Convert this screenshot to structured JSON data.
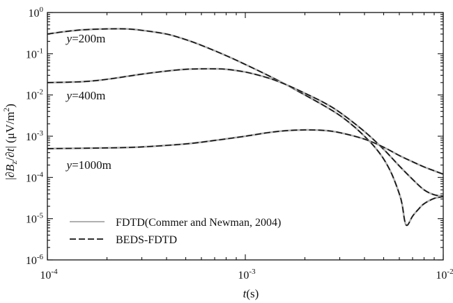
{
  "chart_data": {
    "type": "line",
    "x_scale": "log",
    "y_scale": "log",
    "xlim": [
      0.0001,
      0.01
    ],
    "ylim": [
      1e-06,
      1
    ],
    "xlabel": {
      "italic": "t",
      "rest": "(s)"
    },
    "ylabel": "|∂B_z/∂t| (μV/m²)",
    "ylabel_parts": {
      "a": "|∂",
      "b": "B",
      "sub": "z",
      "c": "/∂",
      "d": "t",
      "e": "| (μV/m",
      "sup": "2",
      "f": ")"
    },
    "x_ticks": [
      {
        "value": 0.0001,
        "base": "10",
        "exp": "-4"
      },
      {
        "value": 0.001,
        "base": "10",
        "exp": "-3"
      },
      {
        "value": 0.01,
        "base": "10",
        "exp": "-2"
      }
    ],
    "y_ticks": [
      {
        "value": 1,
        "base": "10",
        "exp": "0"
      },
      {
        "value": 0.1,
        "base": "10",
        "exp": "-1"
      },
      {
        "value": 0.01,
        "base": "10",
        "exp": "-2"
      },
      {
        "value": 0.001,
        "base": "10",
        "exp": "-3"
      },
      {
        "value": 0.0001,
        "base": "10",
        "exp": "-4"
      },
      {
        "value": 1e-05,
        "base": "10",
        "exp": "-5"
      },
      {
        "value": 1e-06,
        "base": "10",
        "exp": "-6"
      }
    ],
    "grid": false,
    "legend_position": "bottom-left",
    "legend": [
      {
        "label": "FDTD(Commer and Newman, 2004)",
        "color": "#b0b0b0",
        "style": "solid"
      },
      {
        "label": "BEDS-FDTD",
        "color": "#111111",
        "style": "dashed"
      }
    ],
    "annotations": [
      {
        "var": "y",
        "rest": "=200m",
        "x": 0.000125,
        "y": 0.19
      },
      {
        "var": "y",
        "rest": "=400m",
        "x": 0.000125,
        "y": 0.0078
      },
      {
        "var": "y",
        "rest": "=1000m",
        "x": 0.000125,
        "y": 0.00016
      }
    ],
    "series": [
      {
        "curve": "y=200m",
        "x": [
          0.0001,
          0.00012,
          0.00015,
          0.0002,
          0.00025,
          0.0003,
          0.0004,
          0.0005,
          0.0006,
          0.0008,
          0.001,
          0.0013,
          0.0016,
          0.002,
          0.0025,
          0.003,
          0.0035,
          0.004,
          0.0045,
          0.005,
          0.0055,
          0.006,
          0.0062,
          0.0064,
          0.0066,
          0.007,
          0.0075,
          0.008,
          0.009,
          0.01
        ],
        "values": [
          0.3,
          0.34,
          0.38,
          0.4,
          0.4,
          0.37,
          0.3,
          0.22,
          0.16,
          0.09,
          0.055,
          0.03,
          0.018,
          0.01,
          0.0055,
          0.0032,
          0.0018,
          0.001,
          0.00055,
          0.00028,
          0.00012,
          4e-05,
          2.2e-05,
          8.5e-06,
          7e-06,
          1.15e-05,
          1.7e-05,
          2.3e-05,
          3.1e-05,
          3.4e-05
        ]
      },
      {
        "curve": "y=400m",
        "x": [
          0.0001,
          0.00015,
          0.0002,
          0.0003,
          0.0004,
          0.0005,
          0.0006,
          0.0007,
          0.0008,
          0.001,
          0.0013,
          0.0016,
          0.002,
          0.0025,
          0.003,
          0.004,
          0.005,
          0.006,
          0.007,
          0.008,
          0.009,
          0.01
        ],
        "values": [
          0.02,
          0.021,
          0.024,
          0.032,
          0.038,
          0.042,
          0.043,
          0.043,
          0.042,
          0.036,
          0.026,
          0.018,
          0.011,
          0.0065,
          0.0038,
          0.0013,
          0.00048,
          0.00019,
          9e-05,
          5e-05,
          3.8e-05,
          3.5e-05
        ]
      },
      {
        "curve": "y=1000m",
        "x": [
          0.0001,
          0.0002,
          0.0003,
          0.0005,
          0.0007,
          0.001,
          0.0013,
          0.0016,
          0.002,
          0.0025,
          0.003,
          0.004,
          0.005,
          0.006,
          0.007,
          0.008,
          0.009,
          0.01
        ],
        "values": [
          0.0005,
          0.00052,
          0.00055,
          0.00065,
          0.00079,
          0.001,
          0.00122,
          0.00136,
          0.00142,
          0.00138,
          0.00122,
          0.00085,
          0.00054,
          0.00034,
          0.00024,
          0.00018,
          0.000145,
          0.00012
        ]
      }
    ]
  }
}
